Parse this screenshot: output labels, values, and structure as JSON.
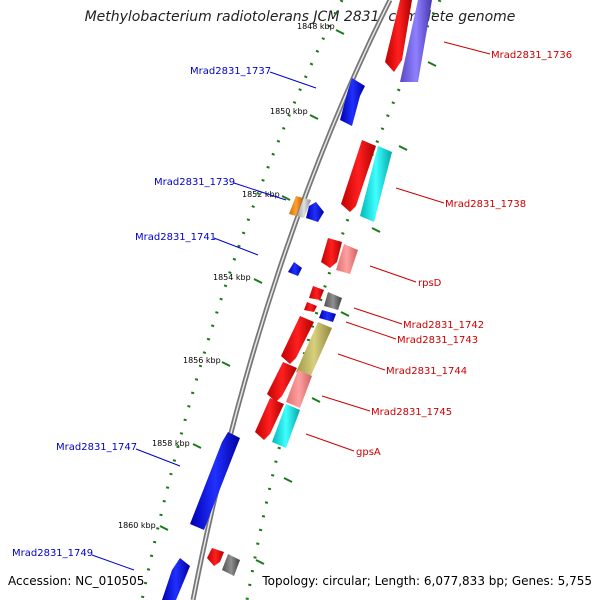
{
  "title": "Methylobacterium radiotolerans JCM 2831, complete genome",
  "footer": {
    "accession": "Accession: NC_010505",
    "summary": "Topology: circular; Length: 6,077,833 bp; Genes: 5,755"
  },
  "colors": {
    "backbone": "#888888",
    "forward_label": "#0000cc",
    "reverse_label": "#cc0000",
    "tick": "#1a7a1a",
    "kbp_text": "#000000"
  },
  "kbp_ticks": [
    {
      "label": "1848 kbp",
      "kbp": 1848
    },
    {
      "label": "1850 kbp",
      "kbp": 1850
    },
    {
      "label": "1852 kbp",
      "kbp": 1852
    },
    {
      "label": "1854 kbp",
      "kbp": 1854
    },
    {
      "label": "1856 kbp",
      "kbp": 1856
    },
    {
      "label": "1858 kbp",
      "kbp": 1858
    },
    {
      "label": "1860 kbp",
      "kbp": 1860
    }
  ],
  "gene_labels": {
    "left": [
      {
        "text": "Mrad2831_1737"
      },
      {
        "text": "Mrad2831_1739"
      },
      {
        "text": "Mrad2831_1741"
      },
      {
        "text": "Mrad2831_1747"
      },
      {
        "text": "Mrad2831_1749"
      }
    ],
    "right": [
      {
        "text": "Mrad2831_1736"
      },
      {
        "text": "Mrad2831_1738"
      },
      {
        "text": "rpsD"
      },
      {
        "text": "Mrad2831_1742"
      },
      {
        "text": "Mrad2831_1743"
      },
      {
        "text": "Mrad2831_1744"
      },
      {
        "text": "Mrad2831_1745"
      },
      {
        "text": "gpsA"
      }
    ]
  }
}
